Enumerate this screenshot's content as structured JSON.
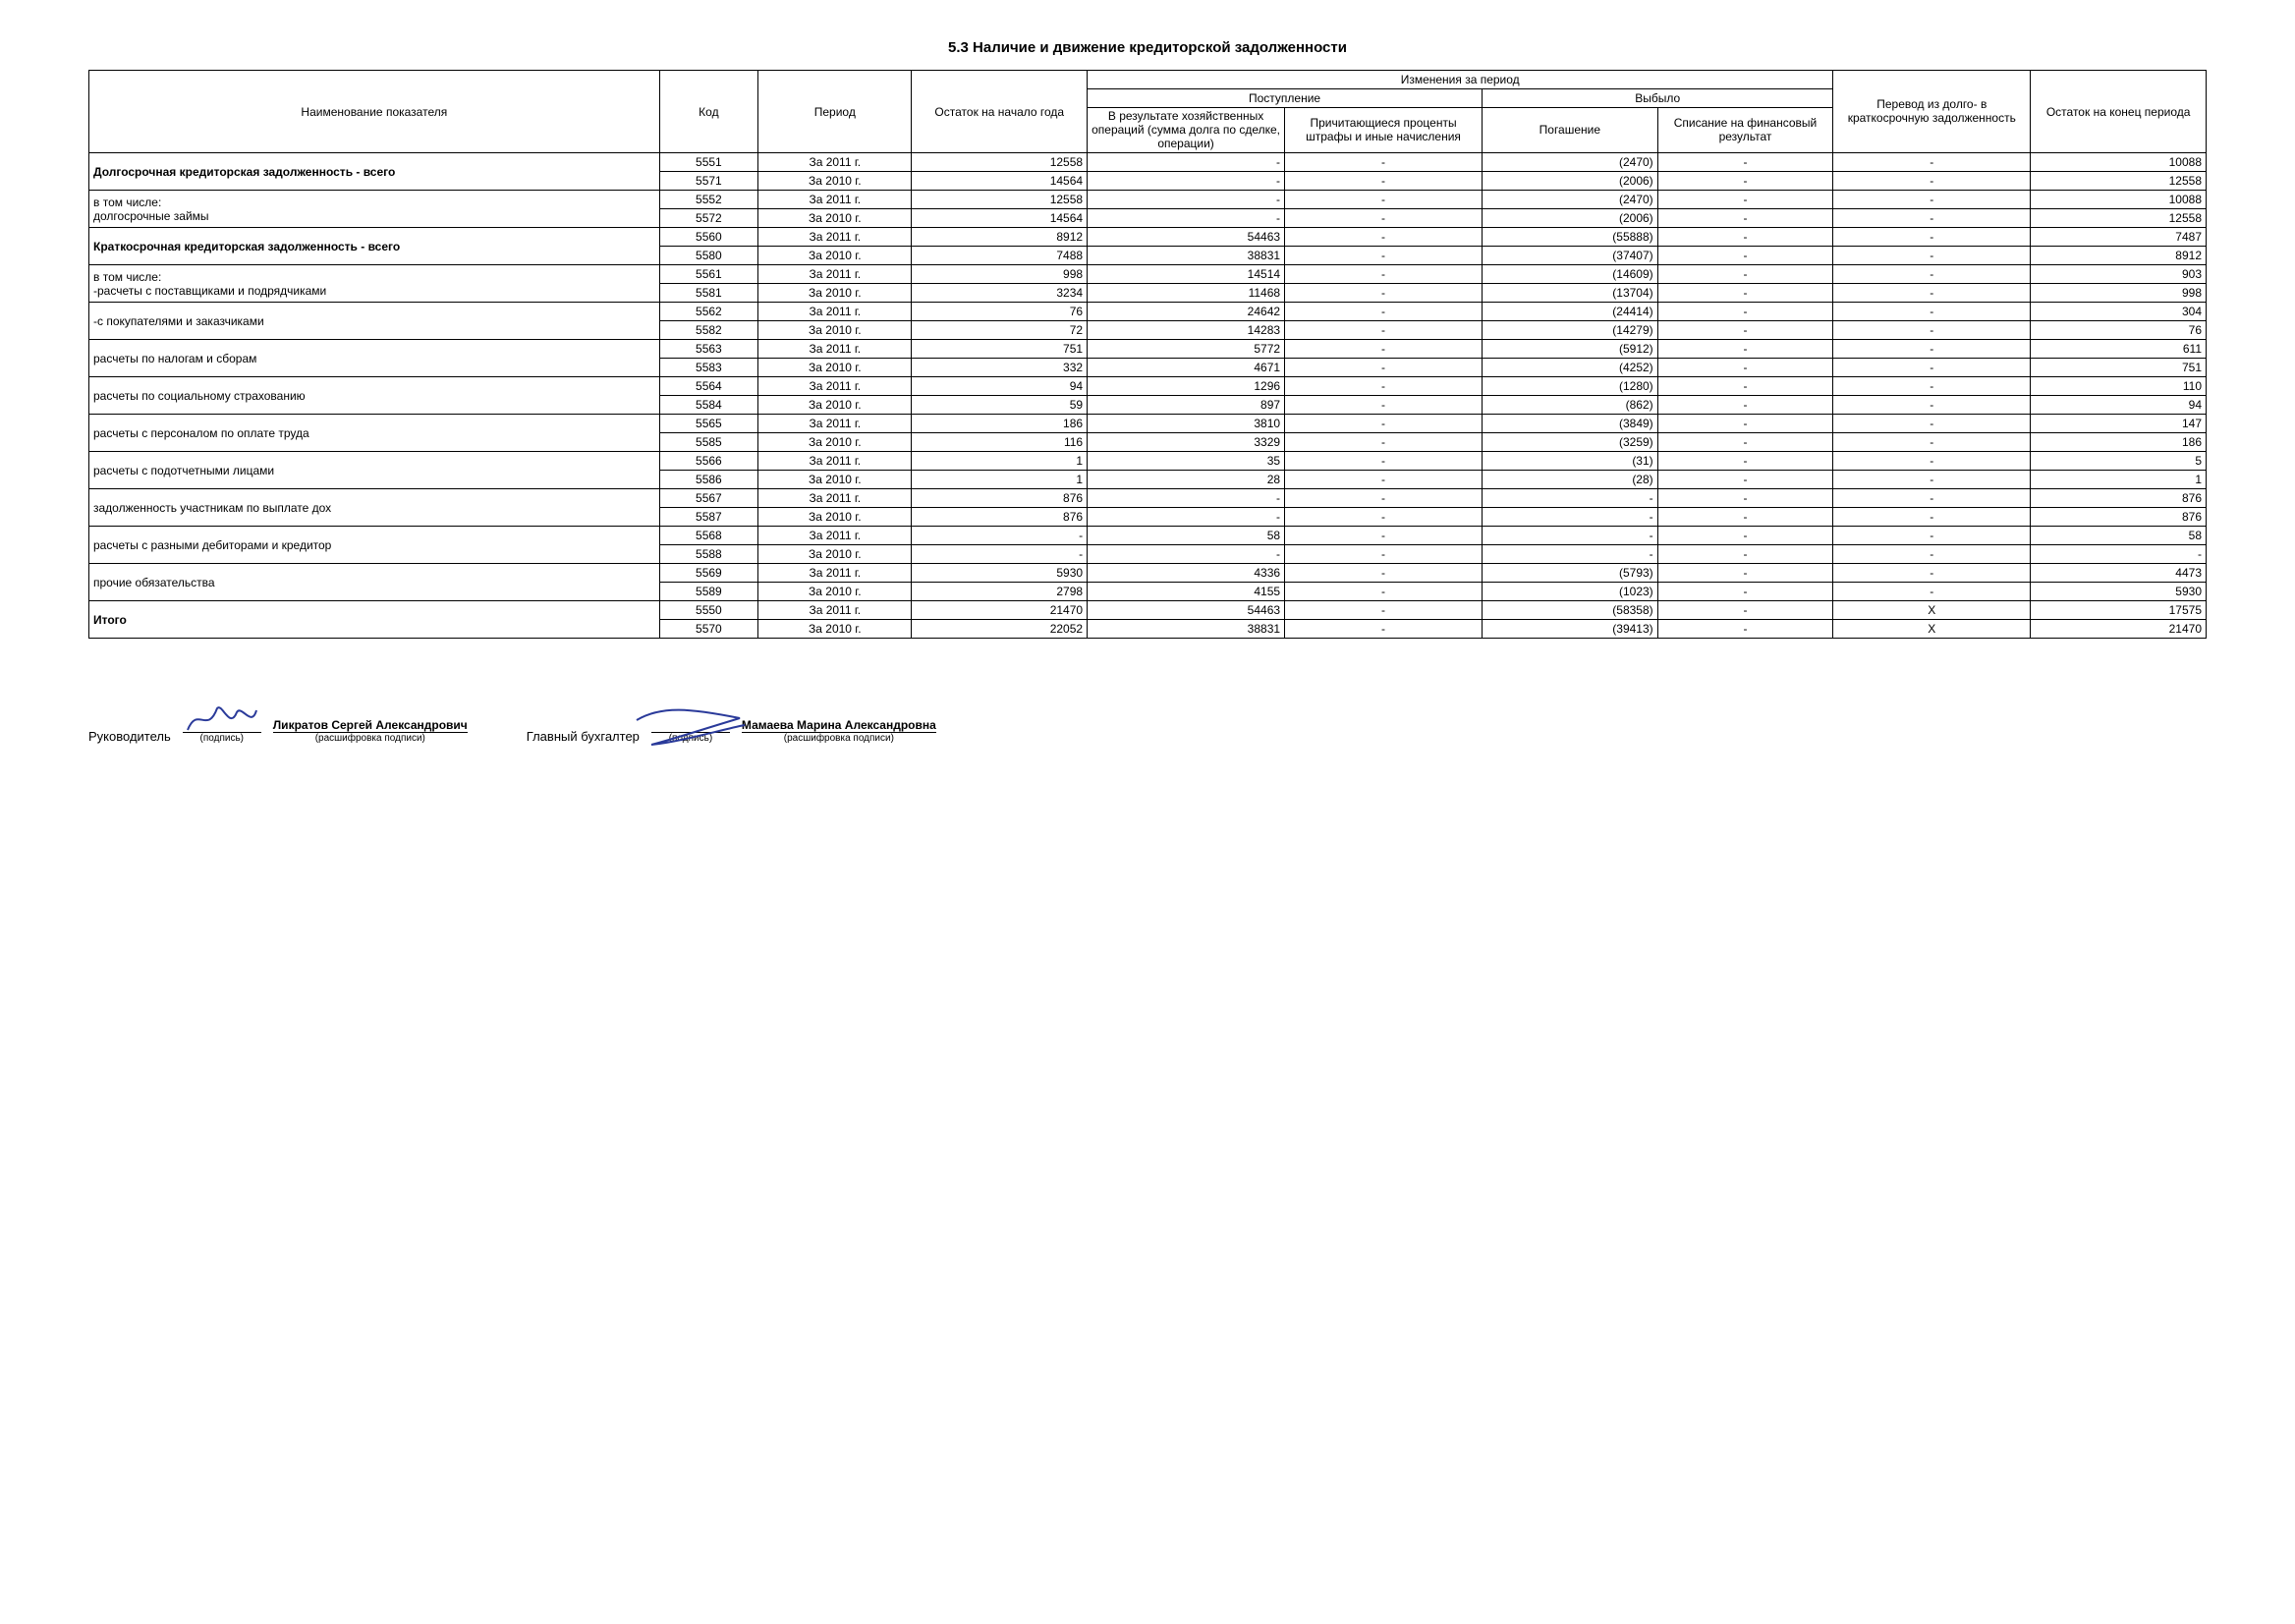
{
  "title": "5.3 Наличие и движение кредиторской задолженности",
  "headers": {
    "name": "Наименование показателя",
    "code": "Код",
    "period": "Период",
    "start": "Остаток на начало года",
    "changes": "Изменения за период",
    "inflow": "Поступление",
    "outflow": "Выбыло",
    "in1": "В результате хозяйственных операций (сумма долга по сделке, операции)",
    "in2": "Причитающиеся проценты штрафы и иные начисления",
    "out1": "Погашение",
    "out2": "Списание на финансовый результат",
    "transfer": "Перевод из долго- в краткосрочную задолженность",
    "end": "Остаток на конец периода"
  },
  "groups": [
    {
      "label": "Долгосрочная кредиторская задолженность - всего",
      "bold": true,
      "rows": [
        {
          "code": "5551",
          "period": "За 2011 г.",
          "start": "12558",
          "in1": "-",
          "in2": "-",
          "out1": "(2470)",
          "out2": "-",
          "tr": "-",
          "end": "10088"
        },
        {
          "code": "5571",
          "period": "За 2010 г.",
          "start": "14564",
          "in1": "-",
          "in2": "-",
          "out1": "(2006)",
          "out2": "-",
          "tr": "-",
          "end": "12558"
        }
      ]
    },
    {
      "label": "в том числе:\nдолгосрочные займы",
      "sublabel_first": "в том числе:",
      "rows": [
        {
          "code": "5552",
          "period": "За 2011 г.",
          "start": "12558",
          "in1": "-",
          "in2": "-",
          "out1": "(2470)",
          "out2": "-",
          "tr": "-",
          "end": "10088"
        },
        {
          "code": "5572",
          "period": "За 2010 г.",
          "start": "14564",
          "in1": "-",
          "in2": "-",
          "out1": "(2006)",
          "out2": "-",
          "tr": "-",
          "end": "12558"
        }
      ]
    },
    {
      "label": "Краткосрочная кредиторская задолженность - всего",
      "bold": true,
      "rows": [
        {
          "code": "5560",
          "period": "За 2011 г.",
          "start": "8912",
          "in1": "54463",
          "in2": "-",
          "out1": "(55888)",
          "out2": "-",
          "tr": "-",
          "end": "7487"
        },
        {
          "code": "5580",
          "period": "За 2010 г.",
          "start": "7488",
          "in1": "38831",
          "in2": "-",
          "out1": "(37407)",
          "out2": "-",
          "tr": "-",
          "end": "8912"
        }
      ]
    },
    {
      "label": "в том числе:\n-расчеты с поставщиками и подрядчиками",
      "rows": [
        {
          "code": "5561",
          "period": "За 2011 г.",
          "start": "998",
          "in1": "14514",
          "in2": "-",
          "out1": "(14609)",
          "out2": "-",
          "tr": "-",
          "end": "903"
        },
        {
          "code": "5581",
          "period": "За 2010 г.",
          "start": "3234",
          "in1": "11468",
          "in2": "-",
          "out1": "(13704)",
          "out2": "-",
          "tr": "-",
          "end": "998"
        }
      ]
    },
    {
      "label": "-с покупателями и заказчиками",
      "rows": [
        {
          "code": "5562",
          "period": "За 2011 г.",
          "start": "76",
          "in1": "24642",
          "in2": "-",
          "out1": "(24414)",
          "out2": "-",
          "tr": "-",
          "end": "304"
        },
        {
          "code": "5582",
          "period": "За 2010 г.",
          "start": "72",
          "in1": "14283",
          "in2": "-",
          "out1": "(14279)",
          "out2": "-",
          "tr": "-",
          "end": "76"
        }
      ]
    },
    {
      "label": "расчеты по налогам и сборам",
      "rows": [
        {
          "code": "5563",
          "period": "За 2011 г.",
          "start": "751",
          "in1": "5772",
          "in2": "-",
          "out1": "(5912)",
          "out2": "-",
          "tr": "-",
          "end": "611"
        },
        {
          "code": "5583",
          "period": "За 2010 г.",
          "start": "332",
          "in1": "4671",
          "in2": "-",
          "out1": "(4252)",
          "out2": "-",
          "tr": "-",
          "end": "751"
        }
      ]
    },
    {
      "label": "расчеты по социальному страхованию",
      "rows": [
        {
          "code": "5564",
          "period": "За 2011 г.",
          "start": "94",
          "in1": "1296",
          "in2": "-",
          "out1": "(1280)",
          "out2": "-",
          "tr": "-",
          "end": "110"
        },
        {
          "code": "5584",
          "period": "За 2010 г.",
          "start": "59",
          "in1": "897",
          "in2": "-",
          "out1": "(862)",
          "out2": "-",
          "tr": "-",
          "end": "94"
        }
      ]
    },
    {
      "label": "расчеты с персоналом по оплате труда",
      "rows": [
        {
          "code": "5565",
          "period": "За 2011 г.",
          "start": "186",
          "in1": "3810",
          "in2": "-",
          "out1": "(3849)",
          "out2": "-",
          "tr": "-",
          "end": "147"
        },
        {
          "code": "5585",
          "period": "За 2010 г.",
          "start": "116",
          "in1": "3329",
          "in2": "-",
          "out1": "(3259)",
          "out2": "-",
          "tr": "-",
          "end": "186"
        }
      ]
    },
    {
      "label": "расчеты с подотчетными лицами",
      "rows": [
        {
          "code": "5566",
          "period": "За 2011 г.",
          "start": "1",
          "in1": "35",
          "in2": "-",
          "out1": "(31)",
          "out2": "-",
          "tr": "-",
          "end": "5"
        },
        {
          "code": "5586",
          "period": "За 2010 г.",
          "start": "1",
          "in1": "28",
          "in2": "-",
          "out1": "(28)",
          "out2": "-",
          "tr": "-",
          "end": "1"
        }
      ]
    },
    {
      "label": "задолженность участникам по выплате дох",
      "rows": [
        {
          "code": "5567",
          "period": "За 2011 г.",
          "start": "876",
          "in1": "-",
          "in2": "-",
          "out1": "-",
          "out2": "-",
          "tr": "-",
          "end": "876"
        },
        {
          "code": "5587",
          "period": "За 2010 г.",
          "start": "876",
          "in1": "-",
          "in2": "-",
          "out1": "-",
          "out2": "-",
          "tr": "-",
          "end": "876"
        }
      ]
    },
    {
      "label": "расчеты с разными дебиторами и кредитор",
      "rows": [
        {
          "code": "5568",
          "period": "За 2011 г.",
          "start": "-",
          "in1": "58",
          "in2": "-",
          "out1": "-",
          "out2": "-",
          "tr": "-",
          "end": "58"
        },
        {
          "code": "5588",
          "period": "За 2010 г.",
          "start": "-",
          "in1": "-",
          "in2": "-",
          "out1": "-",
          "out2": "-",
          "tr": "-",
          "end": "-"
        }
      ]
    },
    {
      "label": "прочие обязательства",
      "rows": [
        {
          "code": "5569",
          "period": "За 2011 г.",
          "start": "5930",
          "in1": "4336",
          "in2": "-",
          "out1": "(5793)",
          "out2": "-",
          "tr": "-",
          "end": "4473"
        },
        {
          "code": "5589",
          "period": "За 2010 г.",
          "start": "2798",
          "in1": "4155",
          "in2": "-",
          "out1": "(1023)",
          "out2": "-",
          "tr": "-",
          "end": "5930"
        }
      ]
    },
    {
      "label": "Итого",
      "bold": true,
      "rows": [
        {
          "code": "5550",
          "period": "За 2011 г.",
          "start": "21470",
          "in1": "54463",
          "in2": "-",
          "out1": "(58358)",
          "out2": "-",
          "tr": "X",
          "end": "17575"
        },
        {
          "code": "5570",
          "period": "За 2010 г.",
          "start": "22052",
          "in1": "38831",
          "in2": "-",
          "out1": "(39413)",
          "out2": "-",
          "tr": "X",
          "end": "21470"
        }
      ]
    }
  ],
  "signatures": {
    "role1": "Руководитель",
    "name1": "Ликратов Сергей Александрович",
    "role2": "Главный бухгалтер",
    "name2": "Мамаева Марина Александровна",
    "sub_sign": "(подпись)",
    "sub_name": "(расшифровка подписи)"
  }
}
